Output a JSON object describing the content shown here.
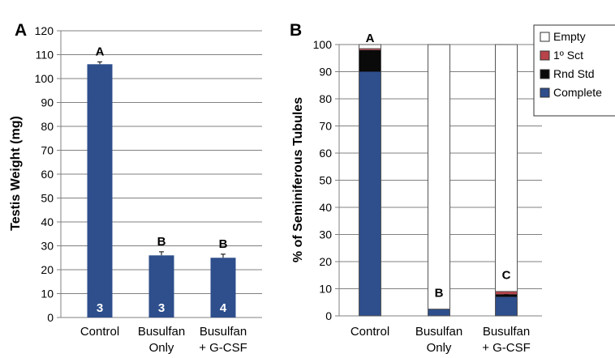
{
  "colors": {
    "complete": "#2e4e8c",
    "rnd_std": "#0a0a0a",
    "sct": "#b8434a",
    "empty": "#ffffff",
    "grid": "#808080",
    "outline": "#555555"
  },
  "chart_data": [
    {
      "panel_label": "A",
      "type": "bar",
      "ylabel": "Testis Weight (mg)",
      "ylim": [
        0,
        120
      ],
      "yticks": [
        0,
        10,
        20,
        30,
        40,
        50,
        60,
        70,
        80,
        90,
        100,
        110,
        120
      ],
      "categories": [
        [
          "Control"
        ],
        [
          "Busulfan",
          "Only"
        ],
        [
          "Busulfan",
          "+ G-CSF"
        ]
      ],
      "values": [
        106,
        26,
        25
      ],
      "errors": [
        1,
        1.5,
        1.5
      ],
      "group_letters": [
        "A",
        "B",
        "B"
      ],
      "n_labels": [
        "3",
        "3",
        "4"
      ],
      "grid": true
    },
    {
      "panel_label": "B",
      "type": "bar",
      "stacked": true,
      "ylabel": "% of Seminiferous Tubules",
      "ylim": [
        0,
        100
      ],
      "yticks": [
        0,
        10,
        20,
        30,
        40,
        50,
        60,
        70,
        80,
        90,
        100
      ],
      "categories": [
        [
          "Control"
        ],
        [
          "Busulfan",
          "Only"
        ],
        [
          "Busulfan",
          "+ G-CSF"
        ]
      ],
      "series": [
        {
          "name": "Complete",
          "values": [
            90,
            2.5,
            7
          ],
          "errors": [
            0.5,
            1,
            1
          ]
        },
        {
          "name": "Rnd Std",
          "values": [
            8,
            0,
            1
          ],
          "errors": [
            2,
            0,
            0.5
          ]
        },
        {
          "name": "1º Sct",
          "values": [
            0.5,
            0,
            1
          ],
          "errors": [
            0.5,
            0,
            0.5
          ]
        },
        {
          "name": "Empty",
          "values": [
            1.5,
            97.5,
            91
          ],
          "errors": [
            0,
            0,
            0
          ]
        }
      ],
      "group_letters": [
        "A",
        "B",
        "C"
      ],
      "legend_position": "top-right",
      "grid": true
    }
  ]
}
